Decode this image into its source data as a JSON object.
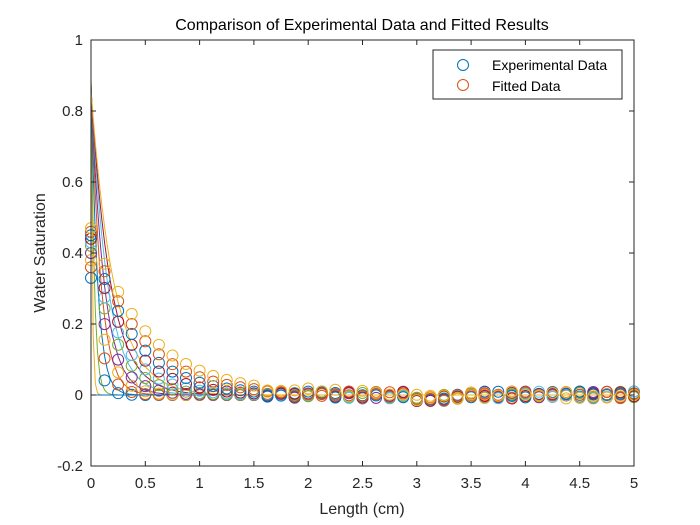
{
  "chart_data": {
    "type": "scatter",
    "title": "Comparison of Experimental Data and Fitted Results",
    "xlabel": "Length (cm)",
    "ylabel": "Water Saturation",
    "xlim": [
      0,
      5
    ],
    "ylim": [
      -0.2,
      1
    ],
    "xticks": [
      "0",
      "0.5",
      "1",
      "1.5",
      "2",
      "2.5",
      "3",
      "3.5",
      "4",
      "4.5",
      "5"
    ],
    "yticks": [
      "-0.2",
      "0",
      "0.2",
      "0.4",
      "0.6",
      "0.8",
      "1"
    ],
    "grid": false,
    "legend": {
      "placement": "top-right",
      "entries": [
        {
          "name": "Experimental Data",
          "marker": "circle",
          "color": "#0072BD"
        },
        {
          "name": "Fitted Data",
          "marker": "circle",
          "color": "#D95319"
        }
      ]
    },
    "colors": [
      "#0072BD",
      "#D95319",
      "#EDB120",
      "#7E2F8E",
      "#77AC30",
      "#4DBEEE",
      "#A2142F"
    ],
    "marker_x": [
      0,
      0.125,
      0.25,
      0.375,
      0.5,
      0.625,
      0.75,
      0.875,
      1,
      1.125,
      1.25,
      1.375,
      1.5,
      1.625,
      1.75,
      1.875,
      2,
      2.125,
      2.25,
      2.375,
      2.5,
      2.625,
      2.75,
      2.875,
      3,
      3.125,
      3.25,
      3.375,
      3.5,
      3.625,
      3.75,
      3.875,
      4,
      4.125,
      4.25,
      4.375,
      4.5,
      4.625,
      4.75,
      4.875,
      5
    ],
    "marker_series": [
      {
        "color": "#0072BD",
        "y0": 0.33,
        "decay_cm": 0.06
      },
      {
        "color": "#D95319",
        "y0": 0.36,
        "decay_cm": 0.1
      },
      {
        "color": "#EDB120",
        "y0": 0.38,
        "decay_cm": 0.14
      },
      {
        "color": "#7E2F8E",
        "y0": 0.4,
        "decay_cm": 0.18
      },
      {
        "color": "#77AC30",
        "y0": 0.42,
        "decay_cm": 0.23
      },
      {
        "color": "#4DBEEE",
        "y0": 0.43,
        "decay_cm": 0.28
      },
      {
        "color": "#A2142F",
        "y0": 0.44,
        "decay_cm": 0.33
      },
      {
        "color": "#0072BD",
        "y0": 0.45,
        "decay_cm": 0.39
      },
      {
        "color": "#D95319",
        "y0": 0.46,
        "decay_cm": 0.45
      },
      {
        "color": "#EDB120",
        "y0": 0.47,
        "decay_cm": 0.52
      }
    ],
    "fit_x": [
      0,
      0.02,
      0.04,
      0.06,
      0.08,
      0.1,
      0.125,
      0.15,
      0.175,
      0.2,
      0.25,
      0.3,
      0.35,
      0.4,
      0.45,
      0.5,
      0.6,
      0.7,
      0.8,
      0.9,
      1.0,
      1.2,
      1.4,
      1.6,
      1.8,
      2.0,
      2.5,
      3.0,
      3.5,
      4.0,
      4.5,
      5.0
    ],
    "fit_series": [
      {
        "color": "#EDB120",
        "y0": 0.9,
        "decay_cm": 0.012
      },
      {
        "color": "#77AC30",
        "y0": 0.89,
        "decay_cm": 0.03
      },
      {
        "color": "#0072BD",
        "y0": 0.88,
        "decay_cm": 0.06
      },
      {
        "color": "#D95319",
        "y0": 0.88,
        "decay_cm": 0.09
      },
      {
        "color": "#7E2F8E",
        "y0": 0.87,
        "decay_cm": 0.12
      },
      {
        "color": "#4DBEEE",
        "y0": 0.87,
        "decay_cm": 0.15
      },
      {
        "color": "#A2142F",
        "y0": 0.86,
        "decay_cm": 0.18
      },
      {
        "color": "#EDB120",
        "y0": 0.86,
        "decay_cm": 0.21
      }
    ]
  }
}
